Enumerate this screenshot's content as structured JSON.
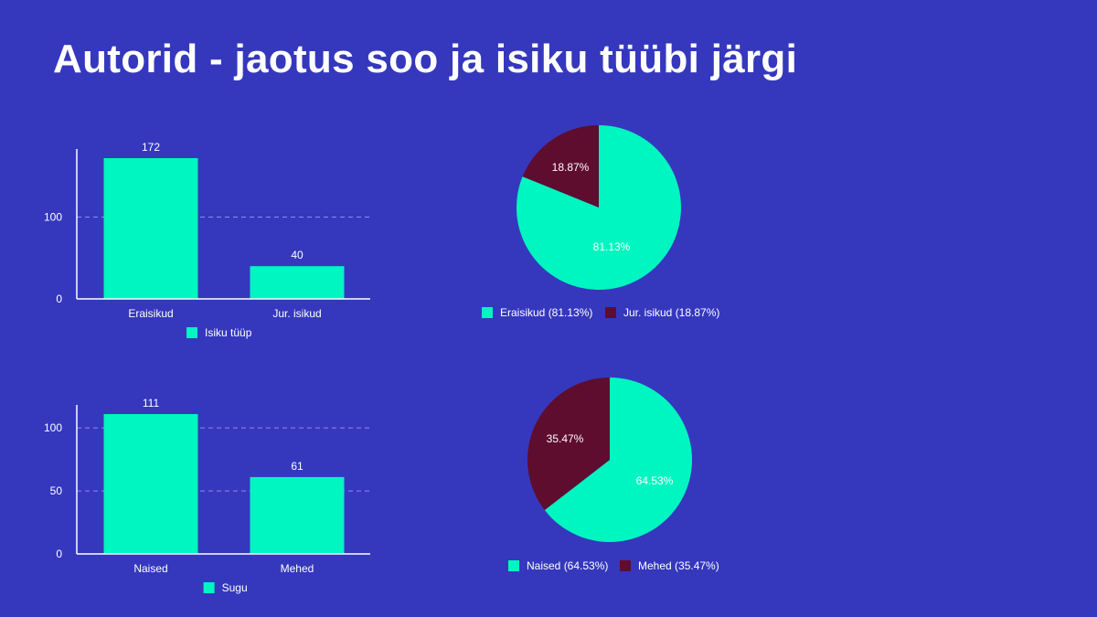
{
  "title": "Autorid - jaotus soo ja isiku tüübi järgi",
  "colors": {
    "background": "#3538bd",
    "mint": "#00f6c0",
    "maroon": "#5e0d2e",
    "axis": "#ffffff",
    "grid": "#8c8fe0"
  },
  "chart_data": [
    {
      "type": "bar",
      "categories": [
        "Eraisikud",
        "Jur. isikud"
      ],
      "series": [
        {
          "name": "Isiku tüüp",
          "values": [
            172,
            40
          ]
        }
      ],
      "data_labels": [
        "172",
        "40"
      ],
      "y_ticks": [
        "0",
        "100"
      ],
      "ylim": [
        0,
        190
      ],
      "grid": true,
      "legend": "bottom"
    },
    {
      "type": "pie",
      "slices": [
        {
          "label": "Eraisikud",
          "value": 81.13,
          "display": "81.13%",
          "legend": "Eraisikud (81.13%)"
        },
        {
          "label": "Jur. isikud",
          "value": 18.87,
          "display": "18.87%",
          "legend": "Jur. isikud (18.87%)"
        }
      ],
      "legend": "bottom"
    },
    {
      "type": "bar",
      "categories": [
        "Naised",
        "Mehed"
      ],
      "series": [
        {
          "name": "Sugu",
          "values": [
            111,
            61
          ]
        }
      ],
      "data_labels": [
        "111",
        "61"
      ],
      "y_ticks": [
        "0",
        "50",
        "100"
      ],
      "ylim": [
        0,
        118
      ],
      "grid": true,
      "legend": "bottom"
    },
    {
      "type": "pie",
      "slices": [
        {
          "label": "Naised",
          "value": 64.53,
          "display": "64.53%",
          "legend": "Naised (64.53%)"
        },
        {
          "label": "Mehed",
          "value": 35.47,
          "display": "35.47%",
          "legend": "Mehed (35.47%)"
        }
      ],
      "legend": "bottom"
    }
  ]
}
